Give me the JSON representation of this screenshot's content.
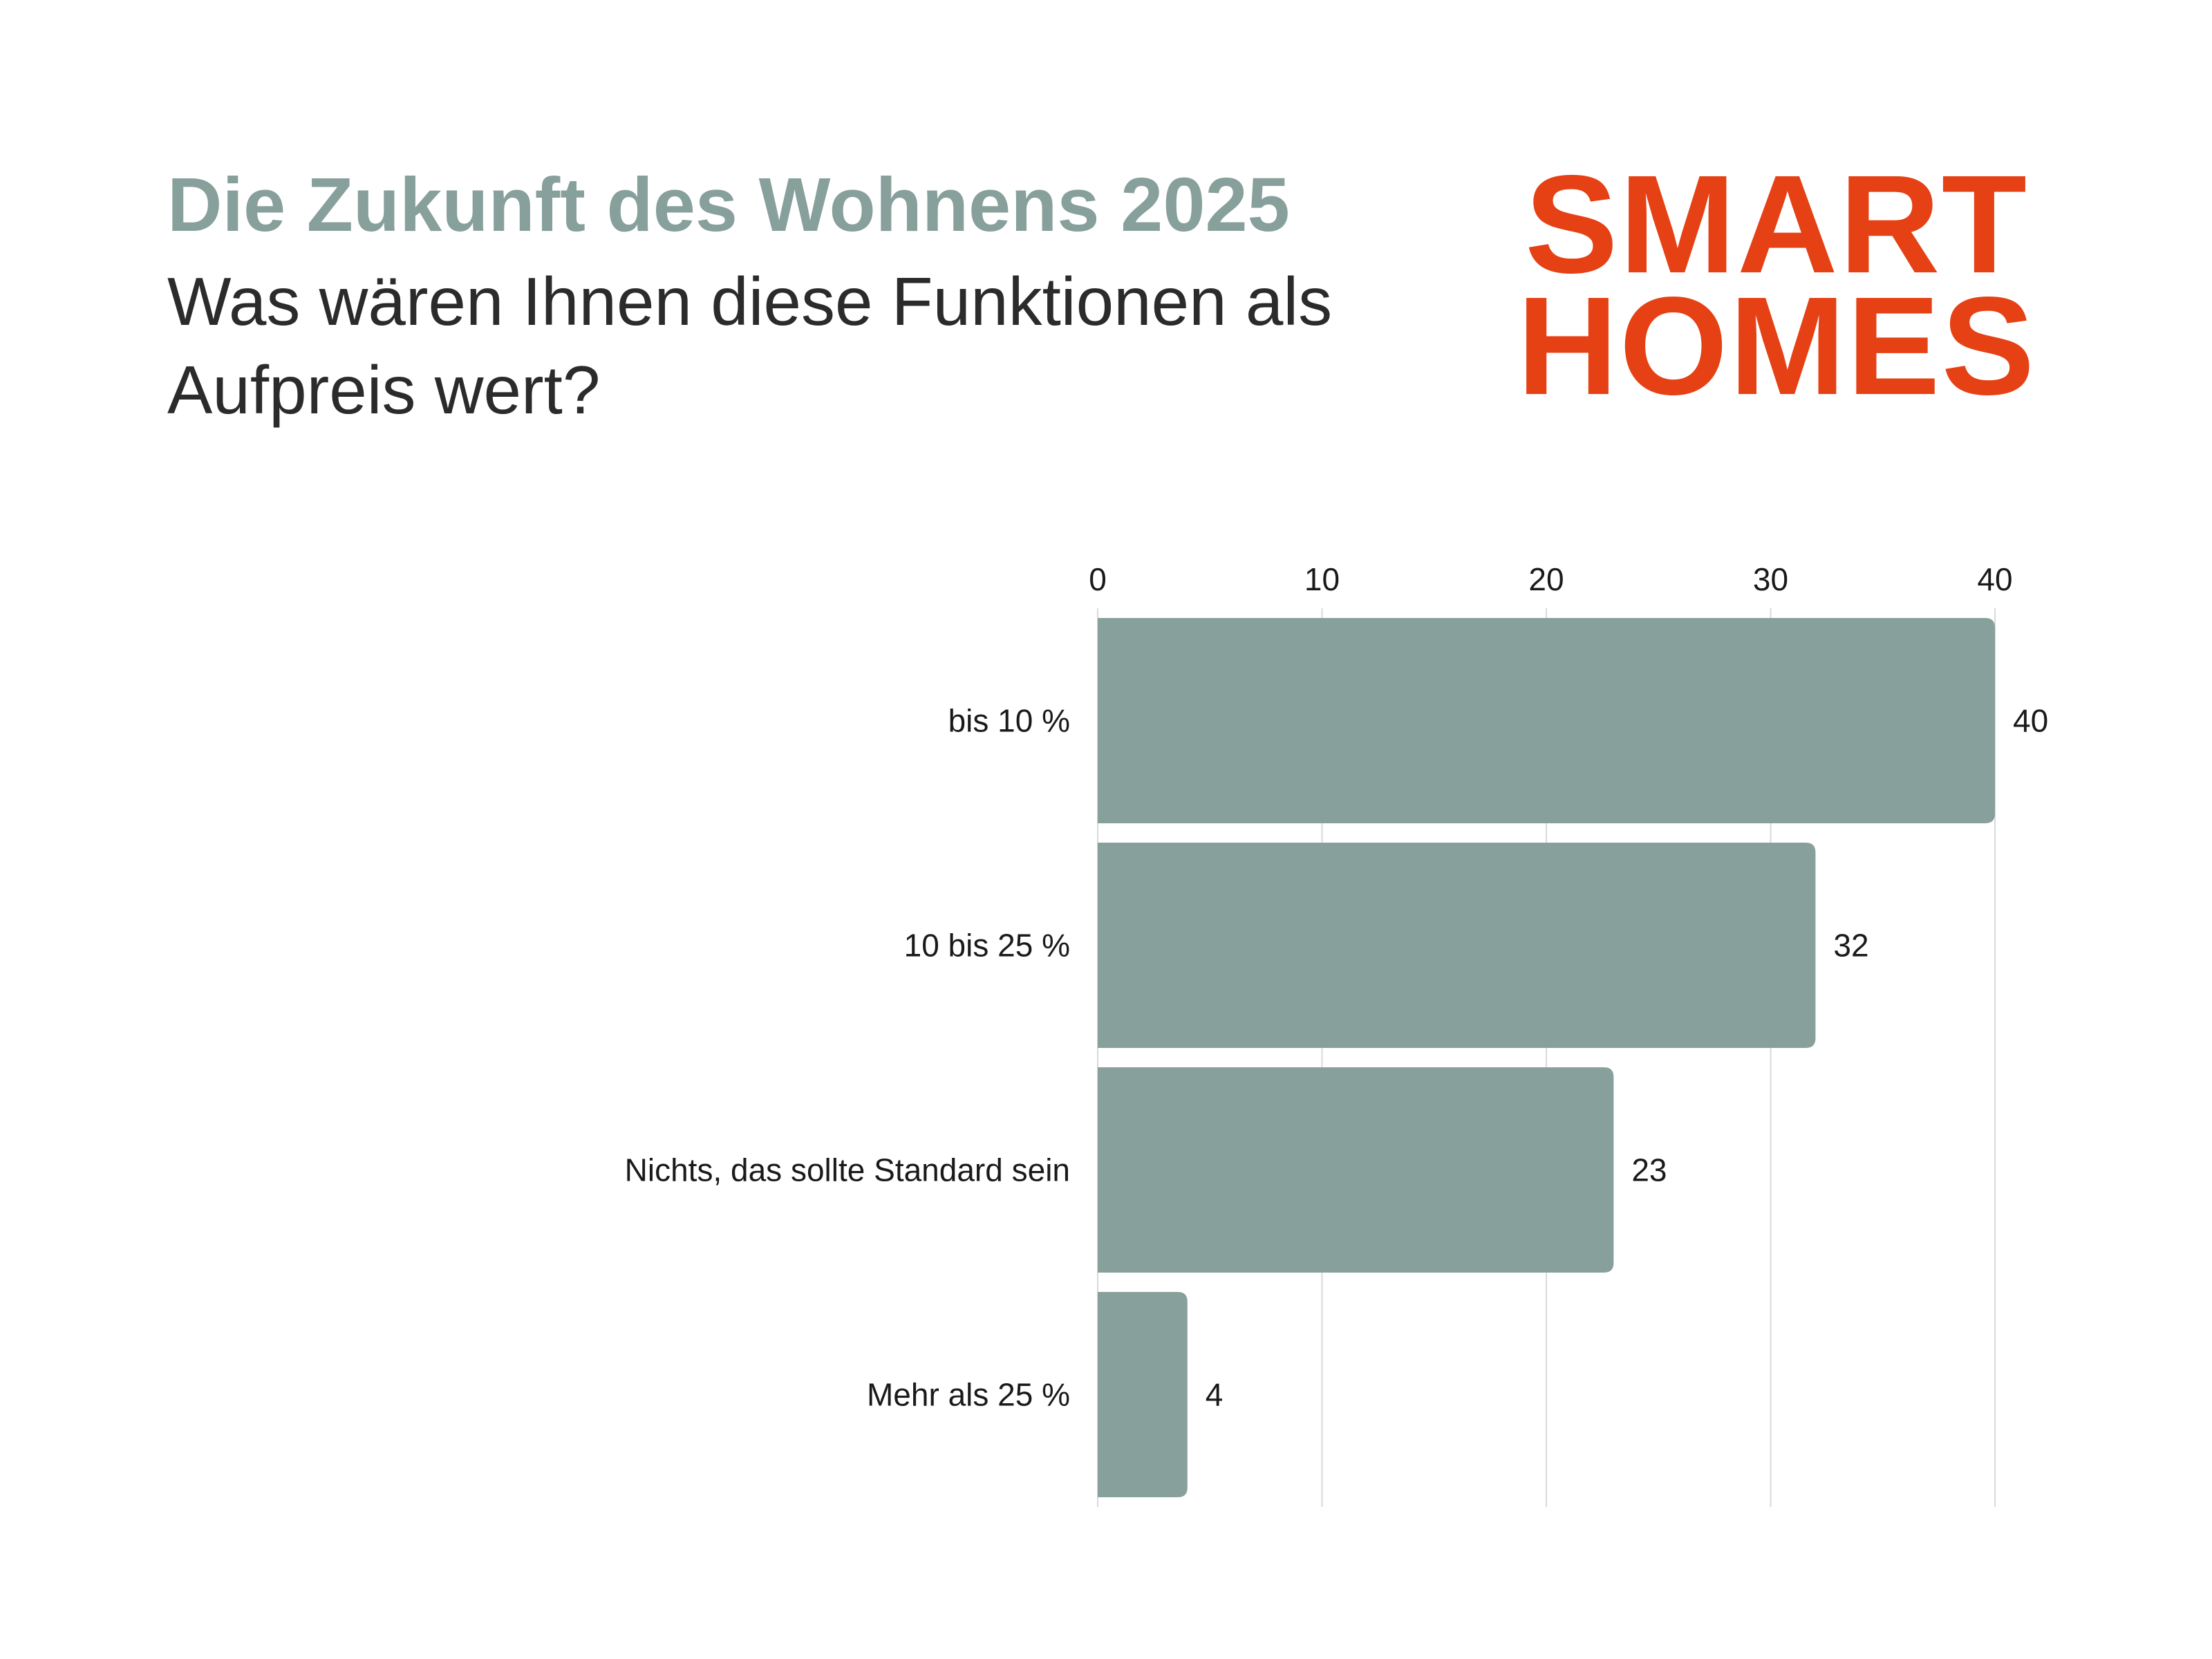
{
  "header": {
    "title": "Die Zukunft des Wohnens 2025",
    "subtitle": "Was wären Ihnen diese Funktionen als Aufpreis wert?"
  },
  "logo": {
    "line1": "SMART",
    "line2": "HOMES"
  },
  "colors": {
    "accent": "#87a09b",
    "brand": "#e64115",
    "text": "#1a1a1a",
    "grid": "#d9d9d9"
  },
  "chart_data": {
    "type": "bar",
    "orientation": "horizontal",
    "categories": [
      "bis 10 %",
      "10 bis 25 %",
      "Nichts, das sollte Standard sein",
      "Mehr als 25 %"
    ],
    "values": [
      40,
      32,
      23,
      4
    ],
    "xlim": [
      0,
      40
    ],
    "xticks": [
      0,
      10,
      20,
      30,
      40
    ],
    "x_axis_position": "top",
    "grid": true,
    "data_labels": true,
    "title": "Die Zukunft des Wohnens 2025",
    "subtitle": "Was wären Ihnen diese Funktionen als Aufpreis wert?",
    "xlabel": "",
    "ylabel": ""
  }
}
